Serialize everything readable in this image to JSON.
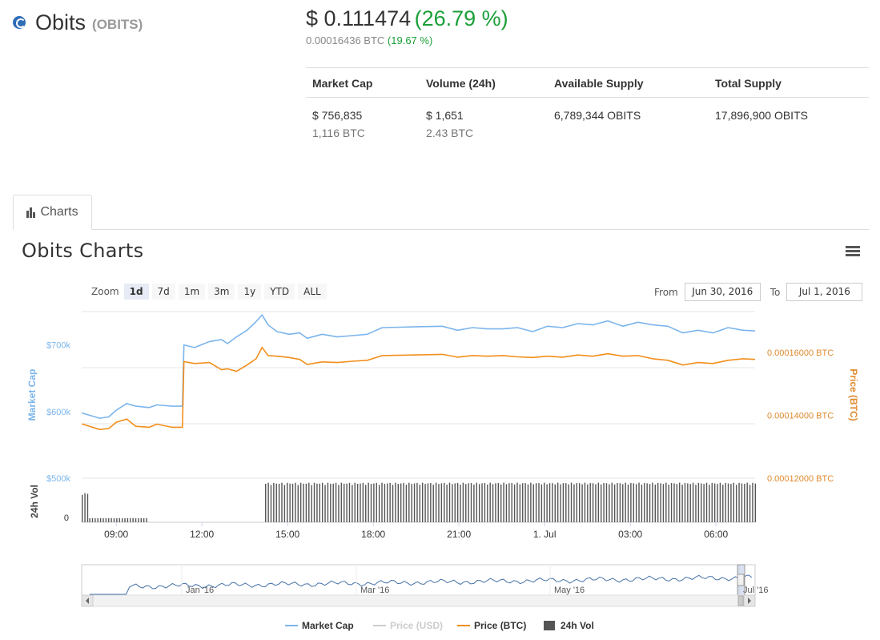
{
  "coin": {
    "name": "Obits",
    "symbol": "(OBITS)",
    "logo_icon": "obits-logo-icon"
  },
  "price": {
    "usd": "$ 0.111474",
    "usd_change": "(26.79 %)",
    "btc": "0.00016436 BTC",
    "btc_change": "(19.67 %)"
  },
  "stats": {
    "headers": [
      "Market Cap",
      "Volume (24h)",
      "Available Supply",
      "Total Supply"
    ],
    "market_cap_usd": "$ 756,835",
    "market_cap_btc": "1,116 BTC",
    "volume_usd": "$ 1,651",
    "volume_btc": "2.43 BTC",
    "available_supply": "6,789,344 OBITS",
    "total_supply": "17,896,900 OBITS"
  },
  "tabs": [
    {
      "label": "Charts",
      "icon": "bar-chart-icon"
    }
  ],
  "chart_section": {
    "title": "Obits Charts",
    "menu_icon": "hamburger-menu-icon",
    "zoom_label": "Zoom",
    "zoom_buttons": [
      "1d",
      "7d",
      "1m",
      "3m",
      "1y",
      "YTD",
      "ALL"
    ],
    "zoom_active": "1d",
    "from_label": "From",
    "from_value": "Jun 30, 2016",
    "to_label": "To",
    "to_value": "Jul 1, 2016"
  },
  "chart_data": {
    "type": "line",
    "x_ticks": [
      "09:00",
      "12:00",
      "15:00",
      "18:00",
      "21:00",
      "1. Jul",
      "03:00",
      "06:00"
    ],
    "x_range_hours": [
      0,
      24
    ],
    "y_left": {
      "label": "Market Cap",
      "ticks": [
        "$500k",
        "$600k",
        "$700k"
      ],
      "range": [
        500000,
        750000
      ],
      "color": "#7cb5ec"
    },
    "y_right": {
      "label": "Price (BTC)",
      "ticks": [
        "0.00012000 BTC",
        "0.00014000 BTC",
        "0.00016000 BTC"
      ],
      "range": [
        0.00012,
        0.000173
      ],
      "color": "#f7a35c"
    },
    "vol_axis": {
      "label": "24h Vol",
      "ticks": [
        "0"
      ]
    },
    "colors": {
      "market_cap": "#7cb5ec",
      "price_btc": "#f28f1c",
      "price_usd": "#cccccc",
      "volume": "#555555"
    },
    "series": [
      {
        "name": "Market Cap",
        "points": [
          [
            0,
            598000
          ],
          [
            1.2,
            590000
          ],
          [
            1.8,
            592000
          ],
          [
            2.3,
            602000
          ],
          [
            3,
            612000
          ],
          [
            3.6,
            608000
          ],
          [
            4.5,
            606000
          ],
          [
            5,
            610000
          ],
          [
            6,
            608000
          ],
          [
            6.7,
            608000
          ],
          [
            6.8,
            700000
          ],
          [
            7.5,
            696000
          ],
          [
            8.5,
            705000
          ],
          [
            9.3,
            708000
          ],
          [
            9.7,
            702000
          ],
          [
            10.3,
            712000
          ],
          [
            11,
            722000
          ],
          [
            11.6,
            735000
          ],
          [
            12,
            745000
          ],
          [
            12.4,
            730000
          ],
          [
            13,
            720000
          ],
          [
            13.8,
            716000
          ],
          [
            14.5,
            718000
          ],
          [
            15,
            710000
          ],
          [
            16,
            716000
          ],
          [
            17,
            712000
          ],
          [
            18,
            714000
          ],
          [
            19,
            716000
          ],
          [
            20,
            726000
          ],
          [
            22,
            727000
          ],
          [
            24,
            728000
          ],
          [
            25,
            722000
          ],
          [
            26,
            726000
          ],
          [
            27,
            724000
          ],
          [
            28,
            724000
          ],
          [
            29,
            726000
          ],
          [
            30,
            720000
          ],
          [
            31,
            728000
          ],
          [
            32,
            726000
          ],
          [
            33,
            732000
          ],
          [
            34,
            730000
          ],
          [
            35,
            736000
          ],
          [
            36,
            728000
          ],
          [
            37,
            734000
          ],
          [
            38,
            730000
          ],
          [
            39,
            728000
          ],
          [
            40,
            718000
          ],
          [
            41,
            722000
          ],
          [
            42,
            718000
          ],
          [
            43,
            726000
          ],
          [
            44,
            722000
          ],
          [
            44.8,
            721000
          ]
        ]
      },
      {
        "name": "Price (BTC)",
        "points": [
          [
            0,
            0.0001373
          ],
          [
            1.2,
            0.0001355
          ],
          [
            1.8,
            0.0001358
          ],
          [
            2.3,
            0.0001378
          ],
          [
            3,
            0.0001388
          ],
          [
            3.6,
            0.0001365
          ],
          [
            4.5,
            0.0001362
          ],
          [
            5,
            0.0001372
          ],
          [
            6,
            0.0001362
          ],
          [
            6.7,
            0.0001362
          ],
          [
            6.8,
            0.0001571
          ],
          [
            7.5,
            0.0001565
          ],
          [
            8.5,
            0.0001568
          ],
          [
            9.3,
            0.0001545
          ],
          [
            9.7,
            0.0001548
          ],
          [
            10.3,
            0.000154
          ],
          [
            11,
            0.000156
          ],
          [
            11.6,
            0.000158
          ],
          [
            12,
            0.0001616
          ],
          [
            12.4,
            0.000159
          ],
          [
            13,
            0.0001588
          ],
          [
            13.8,
            0.0001584
          ],
          [
            14.5,
            0.0001578
          ],
          [
            15,
            0.0001562
          ],
          [
            16,
            0.000157
          ],
          [
            17,
            0.0001568
          ],
          [
            18,
            0.0001572
          ],
          [
            19,
            0.0001575
          ],
          [
            20,
            0.000159
          ],
          [
            22,
            0.0001592
          ],
          [
            24,
            0.0001594
          ],
          [
            25,
            0.0001585
          ],
          [
            26,
            0.000159
          ],
          [
            27,
            0.0001588
          ],
          [
            28,
            0.000159
          ],
          [
            29,
            0.0001586
          ],
          [
            30,
            0.0001584
          ],
          [
            31,
            0.0001588
          ],
          [
            32,
            0.0001585
          ],
          [
            33,
            0.0001592
          ],
          [
            34,
            0.0001588
          ],
          [
            35,
            0.0001596
          ],
          [
            36,
            0.0001588
          ],
          [
            37,
            0.000159
          ],
          [
            38,
            0.000158
          ],
          [
            39,
            0.0001575
          ],
          [
            40,
            0.000156
          ],
          [
            41,
            0.0001568
          ],
          [
            42,
            0.0001565
          ],
          [
            43,
            0.0001575
          ],
          [
            44,
            0.000158
          ],
          [
            44.8,
            0.0001578
          ]
        ]
      },
      {
        "name": "24h Vol",
        "segments": [
          {
            "from": 0,
            "to": 0.5,
            "level": 0.7
          },
          {
            "from": 0.5,
            "to": 4.3,
            "level": 0.1
          },
          {
            "from": 12.2,
            "to": 44.8,
            "level": 0.95
          }
        ]
      }
    ],
    "navigator": {
      "ticks": [
        "Jan '16",
        "Mar '16",
        "May '16",
        "Jul '16"
      ]
    },
    "legend": [
      {
        "name": "Market Cap",
        "color": "#7cb5ec",
        "enabled": true
      },
      {
        "name": "Price (USD)",
        "color": "#cccccc",
        "enabled": false
      },
      {
        "name": "Price (BTC)",
        "color": "#f28f1c",
        "enabled": true
      },
      {
        "name": "24h Vol",
        "color": "#555555",
        "enabled": true,
        "symbol": "box"
      }
    ],
    "legend_position": "bottom"
  }
}
